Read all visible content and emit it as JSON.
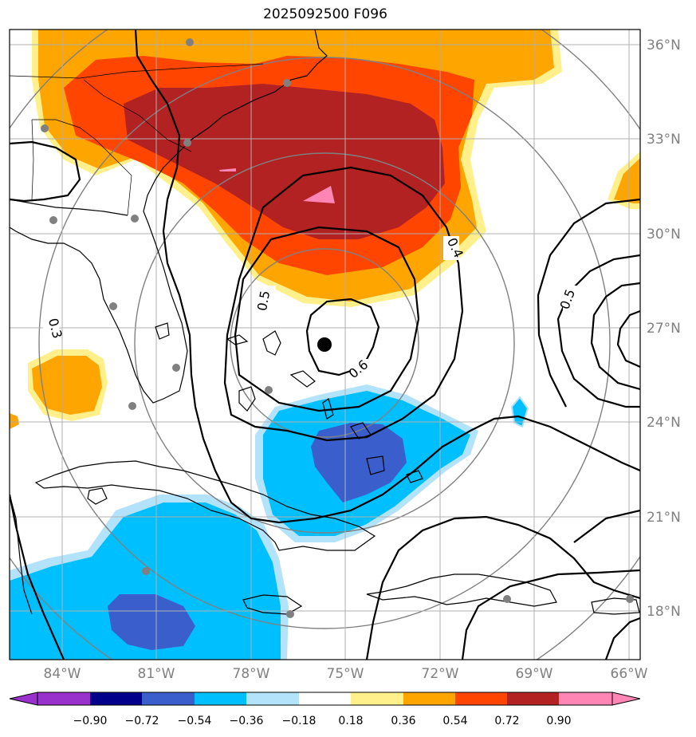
{
  "title": "2025092500 F096",
  "map": {
    "lat_labels": [
      "36°N",
      "33°N",
      "30°N",
      "27°N",
      "24°N",
      "21°N",
      "18°N"
    ],
    "lon_labels": [
      "84°W",
      "81°W",
      "78°W",
      "75°W",
      "72°W",
      "69°W",
      "66°W"
    ],
    "contour_labels": [
      "0.3",
      "0.4",
      "0.5",
      "0.5",
      "0.6"
    ],
    "colors": {
      "neg_090": "#9932cc",
      "neg_072": "#00008b",
      "neg_054": "#3a5fcd",
      "neg_036": "#00bfff",
      "neg_018": "#b3e3fb",
      "pos_018": "#fff08c",
      "pos_036": "#ffa500",
      "pos_054": "#ff4500",
      "pos_072": "#b22222",
      "pos_090": "#ff85b4"
    }
  },
  "colorbar": {
    "ticks": [
      "−0.90",
      "−0.72",
      "−0.54",
      "−0.36",
      "−0.18",
      "0.18",
      "0.36",
      "0.54",
      "0.72",
      "0.90"
    ]
  }
}
